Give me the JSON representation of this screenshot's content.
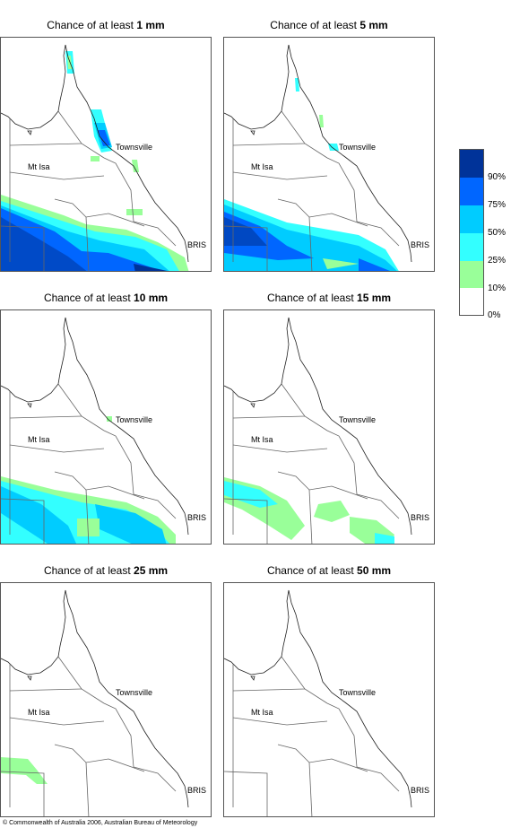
{
  "colors": {
    "bin_10_25": "#99ff99",
    "bin_25_50": "#33ffff",
    "bin_50_75": "#00ccff",
    "bin_75_90": "#0066ff",
    "bin_90_100": "#003399",
    "border": "#555555",
    "coast": "#222222"
  },
  "legend": {
    "labels": [
      "90%",
      "75%",
      "50%",
      "25%",
      "10%",
      "0%"
    ],
    "bins": [
      {
        "range": "90-100%",
        "color": "#003399"
      },
      {
        "range": "75-90%",
        "color": "#0066ff"
      },
      {
        "range": "50-75%",
        "color": "#00ccff"
      },
      {
        "range": "25-50%",
        "color": "#33ffff"
      },
      {
        "range": "10-25%",
        "color": "#99ff99"
      },
      {
        "range": "0-10%",
        "color": "#ffffff"
      }
    ]
  },
  "map_labels": {
    "townsville": "Townsville",
    "mt_isa": "Mt Isa",
    "bris": "BRIS"
  },
  "panels": [
    {
      "prefix": "Chance of at least ",
      "amount": "1 mm",
      "max_bin": "90-100%"
    },
    {
      "prefix": "Chance of at least ",
      "amount": "5 mm",
      "max_bin": "90-100%"
    },
    {
      "prefix": "Chance of at least ",
      "amount": "10 mm",
      "max_bin": "50-75%"
    },
    {
      "prefix": "Chance of at least ",
      "amount": "15 mm",
      "max_bin": "50-75%"
    },
    {
      "prefix": "Chance of at least ",
      "amount": "25 mm",
      "max_bin": "10-25%"
    },
    {
      "prefix": "Chance of at least ",
      "amount": "50 mm",
      "max_bin": "0-10%"
    }
  ],
  "copyright": "© Commonwealth of Australia 2006, Australian Bureau of Meteorology"
}
